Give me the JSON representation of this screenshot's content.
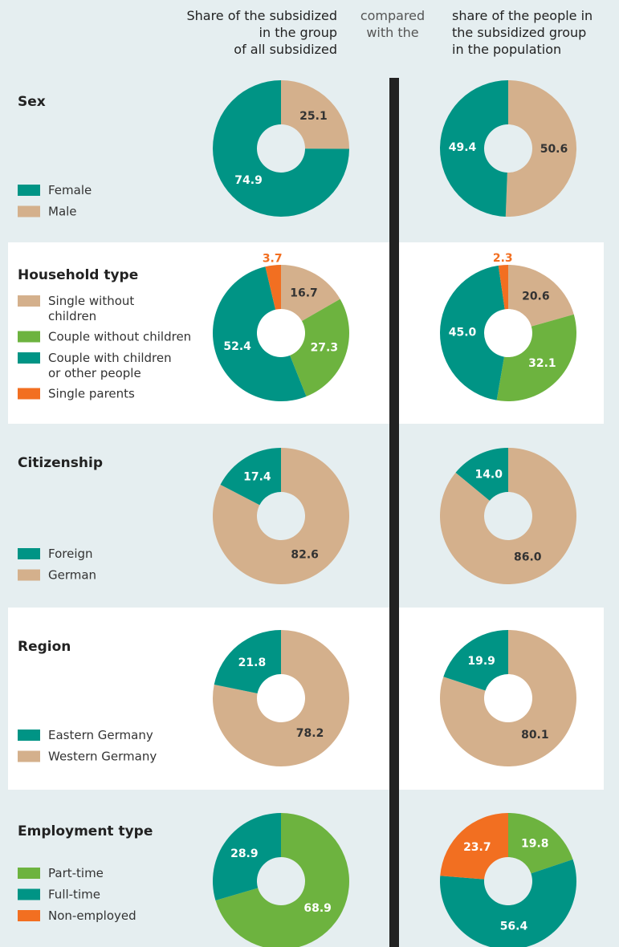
{
  "header": {
    "left": "Share of the subsidized\nin the group\nof all subsidized",
    "middle": "compared\nwith the",
    "right": "share of the people in\nthe subsidized group\nin the population"
  },
  "chart_data": [
    {
      "type": "pie",
      "title": "Sex",
      "categories": [
        "Male",
        "Female"
      ],
      "legend_reversed": true,
      "colors": [
        "#d4b08c",
        "#009485"
      ],
      "label_colors": [
        "#333333",
        "#ffffff"
      ],
      "series": [
        {
          "values": [
            25.1,
            74.9
          ],
          "value_labels": [
            "25.1",
            "74.9"
          ]
        },
        {
          "values": [
            50.6,
            49.4
          ],
          "value_labels": [
            "50.6",
            "49.4"
          ]
        }
      ]
    },
    {
      "type": "pie",
      "title": "Household type",
      "categories": [
        "Single without\nchildren",
        "Couple without children",
        "Couple with children\nor other people",
        "Single parents"
      ],
      "legend_reversed": false,
      "colors": [
        "#d4b08c",
        "#6db33f",
        "#009485",
        "#f26f21"
      ],
      "label_colors": [
        "#333333",
        "#ffffff",
        "#ffffff",
        "#ffffff"
      ],
      "series": [
        {
          "values": [
            16.7,
            27.3,
            52.4,
            3.7
          ],
          "value_labels": [
            "16.7",
            "27.3",
            "52.4",
            "3.7"
          ]
        },
        {
          "values": [
            20.6,
            32.1,
            45.0,
            2.3
          ],
          "value_labels": [
            "20.6",
            "32.1",
            "45.0",
            "2.3"
          ]
        }
      ]
    },
    {
      "type": "pie",
      "title": "Citizenship",
      "categories": [
        "German",
        "Foreign"
      ],
      "legend_reversed": true,
      "colors": [
        "#d4b08c",
        "#009485"
      ],
      "label_colors": [
        "#333333",
        "#ffffff"
      ],
      "series": [
        {
          "values": [
            82.6,
            17.4
          ],
          "value_labels": [
            "82.6",
            "17.4"
          ]
        },
        {
          "values": [
            86.0,
            14.0
          ],
          "value_labels": [
            "86.0",
            "14.0"
          ]
        }
      ]
    },
    {
      "type": "pie",
      "title": "Region",
      "categories": [
        "Western Germany",
        "Eastern Germany"
      ],
      "legend_reversed": true,
      "colors": [
        "#d4b08c",
        "#009485"
      ],
      "label_colors": [
        "#333333",
        "#ffffff"
      ],
      "series": [
        {
          "values": [
            78.2,
            21.8
          ],
          "value_labels": [
            "78.2",
            "21.8"
          ]
        },
        {
          "values": [
            80.1,
            19.9
          ],
          "value_labels": [
            "80.1",
            "19.9"
          ]
        }
      ]
    },
    {
      "type": "pie",
      "title": "Employment type",
      "categories": [
        "Part-time",
        "Full-time",
        "Non-employed"
      ],
      "legend_reversed": false,
      "colors": [
        "#6db33f",
        "#009485",
        "#f26f21"
      ],
      "label_colors": [
        "#ffffff",
        "#ffffff",
        "#ffffff"
      ],
      "series": [
        {
          "values": [
            68.9,
            28.9,
            null
          ],
          "value_labels": [
            "68.9",
            "28.9",
            null
          ]
        },
        {
          "values": [
            19.8,
            56.4,
            23.7
          ],
          "value_labels": [
            "19.8",
            "56.4",
            "23.7"
          ]
        }
      ]
    }
  ]
}
